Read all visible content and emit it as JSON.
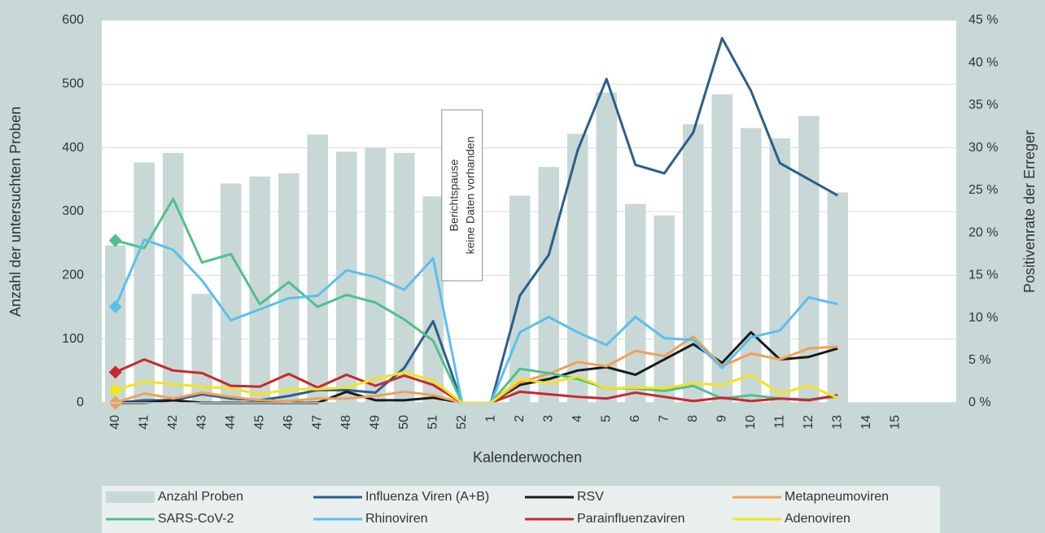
{
  "chart_data": {
    "type": "combo",
    "x_label": "Kalenderwochen",
    "y_label": "Anzahl der untersuchten Proben",
    "y2_label": "Positivenrate der Erreger",
    "annotation": [
      "Berichtspause",
      "keine Daten vorhanden"
    ],
    "categories": [
      "40",
      "41",
      "42",
      "43",
      "44",
      "45",
      "46",
      "47",
      "48",
      "49",
      "50",
      "51",
      "52",
      "1",
      "2",
      "3",
      "4",
      "5",
      "6",
      "7",
      "8",
      "9",
      "10",
      "11",
      "12",
      "13",
      "14",
      "15"
    ],
    "ylim": [
      0,
      600
    ],
    "yticks": [
      0,
      100,
      200,
      300,
      400,
      500,
      600
    ],
    "y2lim": [
      0,
      45
    ],
    "y2ticks": [
      {
        "value": 0,
        "label": "0 %"
      },
      {
        "value": 5,
        "label": "5 %"
      },
      {
        "value": 10,
        "label": "10 %"
      },
      {
        "value": 15,
        "label": "15 %"
      },
      {
        "value": 20,
        "label": "20 %"
      },
      {
        "value": 25,
        "label": "25 %"
      },
      {
        "value": 30,
        "label": "30 %"
      },
      {
        "value": 35,
        "label": "35 %"
      },
      {
        "value": 40,
        "label": "40 %"
      },
      {
        "value": 45,
        "label": "45 %"
      }
    ],
    "grid": true,
    "series": [
      {
        "name": "Anzahl Proben",
        "type": "bar",
        "color": "#c7d8d6",
        "values": [
          247,
          377,
          392,
          171,
          344,
          355,
          360,
          421,
          394,
          400,
          392,
          324,
          0,
          0,
          325,
          370,
          422,
          487,
          312,
          294,
          437,
          484,
          431,
          415,
          450,
          330,
          null,
          null
        ]
      },
      {
        "name": "Influenza Viren (A+B)",
        "type": "line",
        "axis": "y2",
        "color": "#2b5e8c",
        "values": [
          0,
          0.3,
          0.3,
          1,
          0.5,
          0.3,
          0.8,
          1.5,
          1.5,
          1.2,
          4.1,
          9.6,
          0,
          0,
          12.6,
          17.4,
          29.7,
          38.1,
          28,
          27,
          31.8,
          42.9,
          36.7,
          28.2,
          26.3,
          24.4,
          null,
          null
        ]
      },
      {
        "name": "RSV",
        "type": "line",
        "axis": "y2",
        "color": "#1a1a1a",
        "values": [
          0,
          0,
          0.3,
          0,
          0,
          0,
          0,
          0,
          1.3,
          0.3,
          0.3,
          0.6,
          0,
          0,
          2.1,
          2.8,
          3.8,
          4.2,
          3.3,
          5.1,
          6.9,
          4.7,
          8.3,
          5.1,
          5.4,
          6.4,
          null,
          null
        ]
      },
      {
        "name": "Metapneumoviren",
        "type": "line",
        "axis": "y2",
        "color": "#f2a057",
        "values": [
          0,
          1.1,
          0.5,
          1.2,
          0.7,
          0.3,
          0.2,
          0.5,
          0.5,
          0.8,
          1.3,
          0.9,
          0,
          0,
          2.4,
          3.4,
          4.8,
          4.3,
          6.1,
          5.5,
          7.8,
          4.3,
          5.8,
          5.1,
          6.4,
          6.6,
          null,
          null
        ]
      },
      {
        "name": "SARS-CoV-2",
        "type": "line",
        "axis": "y2",
        "color": "#4fc08d",
        "values": [
          19.1,
          18.2,
          24,
          16.5,
          17.5,
          11.6,
          14.2,
          11.3,
          12.7,
          11.8,
          9.8,
          7.3,
          0,
          0,
          4,
          3.5,
          2.8,
          1.7,
          1.7,
          1.4,
          2,
          0.5,
          0.9,
          0.5,
          0.4,
          0.7,
          null,
          null
        ]
      },
      {
        "name": "Rhinoviren",
        "type": "line",
        "axis": "y2",
        "color": "#5bbfec",
        "values": [
          11.3,
          19.2,
          18,
          14.4,
          9.7,
          11,
          12.3,
          12.6,
          15.6,
          14.8,
          13.3,
          17,
          0,
          0,
          8.3,
          10.1,
          8.3,
          6.8,
          10.1,
          7.6,
          7.4,
          4.1,
          7.7,
          8.5,
          12.4,
          11.6,
          null,
          null
        ]
      },
      {
        "name": "Parainfluenzaviren",
        "type": "line",
        "axis": "y2",
        "color": "#c8282d",
        "values": [
          3.6,
          5.1,
          3.8,
          3.5,
          2,
          1.9,
          3.4,
          1.8,
          3.3,
          2,
          3.2,
          2.1,
          0,
          0,
          1.3,
          1,
          0.7,
          0.5,
          1.2,
          0.7,
          0.2,
          0.6,
          0.2,
          0.5,
          0.3,
          0.9,
          null,
          null
        ]
      },
      {
        "name": "Adenoviren",
        "type": "line",
        "axis": "y2",
        "color": "#f5e31a",
        "values": [
          1.5,
          2.5,
          2.2,
          1.9,
          1.7,
          1,
          1.6,
          1.6,
          1.8,
          2.8,
          3.6,
          2.6,
          0,
          0,
          2.8,
          2.3,
          3.1,
          1.7,
          1.8,
          1.7,
          2.3,
          2.1,
          3.3,
          1.1,
          2,
          0.6,
          null,
          null
        ]
      }
    ]
  }
}
